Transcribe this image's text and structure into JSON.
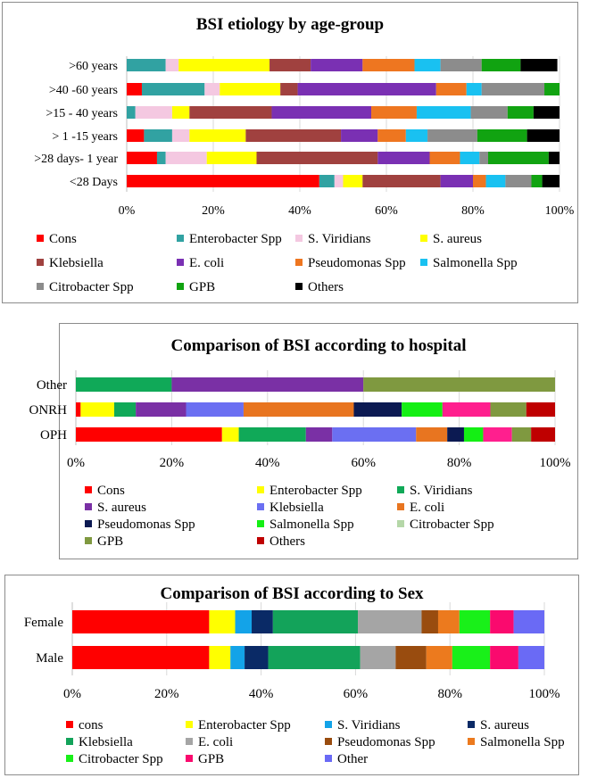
{
  "chart_data": [
    {
      "type": "stacked-bar-percent",
      "title": "BSI etiology by age-group",
      "categories": [
        ">60  years",
        ">40 -60 years",
        ">15 - 40 years",
        "> 1 -15 years",
        ">28 days- 1 year",
        "<28 Days"
      ],
      "x_ticks": [
        "0%",
        "20%",
        "40%",
        "60%",
        "80%",
        "100%"
      ],
      "xlim": [
        0,
        100
      ],
      "legend_position": "bottom",
      "series": [
        {
          "name": "Cons",
          "color": "#ff0000",
          "values": [
            0,
            3.5,
            0,
            4,
            7,
            44.5
          ]
        },
        {
          "name": "Enterobacter Spp",
          "color": "#31a2a2",
          "values": [
            9,
            14.5,
            2,
            6.5,
            2,
            3.5
          ]
        },
        {
          "name": "S. Viridians",
          "color": "#f4c8e1",
          "values": [
            3,
            3.5,
            8.5,
            4,
            9.5,
            2
          ]
        },
        {
          "name": "S. aureus",
          "color": "#ffff00",
          "values": [
            21,
            14,
            4,
            13,
            11.5,
            4.5
          ]
        },
        {
          "name": "Klebsiella",
          "color": "#a0413f",
          "values": [
            9.5,
            4,
            19,
            22,
            28,
            18
          ]
        },
        {
          "name": "E. coli",
          "color": "#7a30b3",
          "values": [
            12,
            32,
            23,
            8.5,
            12,
            7.5
          ]
        },
        {
          "name": "Pseudomonas Spp",
          "color": "#ee7620",
          "values": [
            12,
            7,
            10.5,
            6.5,
            7,
            3
          ]
        },
        {
          "name": "Salmonella Spp",
          "color": "#19c1f1",
          "values": [
            6,
            3.5,
            12.5,
            5,
            4.5,
            4.5
          ]
        },
        {
          "name": "Citrobacter Spp",
          "color": "#8c8c8c",
          "values": [
            9.5,
            14.5,
            8.5,
            11.5,
            2,
            6
          ]
        },
        {
          "name": "GPB",
          "color": "#11a311",
          "values": [
            9,
            3.5,
            6,
            11.5,
            14,
            2.5
          ]
        },
        {
          "name": "Others",
          "color": "#000000",
          "values": [
            8.5,
            0,
            6,
            7.5,
            2.5,
            4
          ]
        }
      ]
    },
    {
      "type": "stacked-bar-percent",
      "title": "Comparison of BSI according to hospital",
      "categories": [
        "Other",
        "ONRH",
        "OPH"
      ],
      "x_ticks": [
        "0%",
        "20%",
        "40%",
        "60%",
        "80%",
        "100%"
      ],
      "xlim": [
        0,
        100
      ],
      "legend_position": "bottom",
      "series": [
        {
          "name": "Cons",
          "color": "#ff0000",
          "values": [
            0,
            1,
            30.5
          ]
        },
        {
          "name": "Enterobacter Spp",
          "color": "#ffff00",
          "values": [
            0,
            7,
            3.5
          ]
        },
        {
          "name": "S. Viridians",
          "color": "#10a958",
          "values": [
            20,
            4.5,
            14
          ]
        },
        {
          "name": "S. aureus",
          "color": "#7a30a5",
          "values": [
            0,
            10.5,
            5.5
          ]
        },
        {
          "name": "Klebsiella",
          "color": "#6b6ff2",
          "values": [
            0,
            12,
            17.5
          ]
        },
        {
          "name": "E. coli",
          "color": "#e87520",
          "values": [
            0,
            23,
            6.5
          ]
        },
        {
          "name": "Pseudomonas Spp",
          "color": "#0c1a52",
          "values": [
            0,
            10,
            3.5
          ]
        },
        {
          "name": "Salmonella Spp",
          "color": "#14ef14",
          "values": [
            0,
            8.5,
            4
          ]
        },
        {
          "name": "Citrobacter Spp",
          "color": "#b5d7a8",
          "values": [
            0,
            0,
            0
          ]
        },
        {
          "name": "GPB",
          "color": "#7f9940",
          "values": [
            40,
            7.5,
            4
          ]
        },
        {
          "name": "Others",
          "color": "#bf0000",
          "values": [
            0,
            6,
            5
          ]
        }
      ],
      "extra_segments": [
        {
          "category": "Other",
          "color": "#7a30a5",
          "value": 40,
          "after": "S. Viridians"
        },
        {
          "category": "ONRH",
          "color": "#ff1f8e",
          "value": 10,
          "after": "Salmonella Spp"
        },
        {
          "category": "OPH",
          "color": "#ff1f8e",
          "value": 6,
          "after": "Salmonella Spp"
        }
      ]
    },
    {
      "type": "stacked-bar-percent",
      "title": "Comparison of BSI according to Sex",
      "categories": [
        "Female",
        "Male"
      ],
      "x_ticks": [
        "0%",
        "20%",
        "40%",
        "60%",
        "80%",
        "100%"
      ],
      "xlim": [
        0,
        100
      ],
      "legend_position": "bottom",
      "series": [
        {
          "name": "cons",
          "color": "#ff0000",
          "values": [
            29,
            29
          ]
        },
        {
          "name": "Enterobacter Spp",
          "color": "#ffff00",
          "values": [
            5.5,
            4.5
          ]
        },
        {
          "name": "S. Viridians",
          "color": "#13a3e8",
          "values": [
            3.5,
            3
          ]
        },
        {
          "name": "S. aureus",
          "color": "#0a2a66",
          "values": [
            4.5,
            5
          ]
        },
        {
          "name": "Klebsiella",
          "color": "#13a35a",
          "values": [
            18,
            19.5
          ]
        },
        {
          "name": "E. coli",
          "color": "#a5a5a5",
          "values": [
            13.5,
            7.5
          ]
        },
        {
          "name": "Pseudomonas Spp",
          "color": "#994c0f",
          "values": [
            3.5,
            6.5
          ]
        },
        {
          "name": "Salmonella Spp",
          "color": "#ec7a1e",
          "values": [
            4.5,
            5.5
          ]
        },
        {
          "name": "Citrobacter Spp",
          "color": "#19f019",
          "values": [
            6.5,
            8
          ]
        },
        {
          "name": "GPB",
          "color": "#fa0a6e",
          "values": [
            5,
            6
          ]
        },
        {
          "name": "Other",
          "color": "#6a6af5",
          "values": [
            6.5,
            5.5
          ]
        }
      ]
    }
  ]
}
